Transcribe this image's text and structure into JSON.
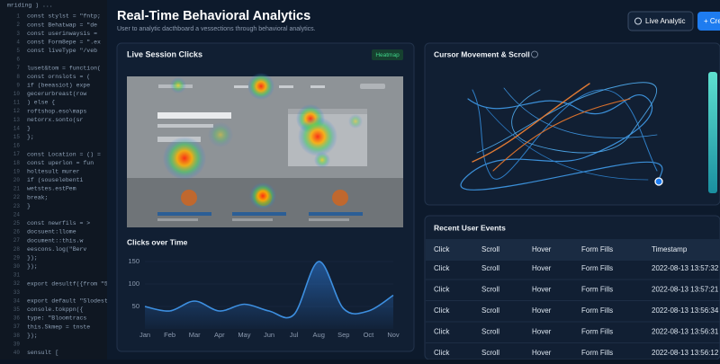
{
  "editor": {
    "tab": "mriding ) ...",
    "line_numbers": [
      "1",
      "2",
      "3",
      "4",
      "5",
      "6",
      "7",
      "8",
      "9",
      "10",
      "11",
      "12",
      "13",
      "14",
      "15",
      "16",
      "17",
      "18",
      "19",
      "20",
      "21",
      "22",
      "23",
      "24",
      "25",
      "26",
      "27",
      "28",
      "29",
      "30",
      "31",
      "32",
      "33",
      "34",
      "35",
      "36",
      "37",
      "38",
      "39",
      "40"
    ],
    "lines": [
      "const stylst = \"fntp;",
      "const Behatwap = \"de",
      "const userinwaysis =",
      "const Form8epe = \".ex",
      "const liveType \"/veb",
      "",
      "luset&tom = function(",
      "  const ornslots = (",
      "  if (beeasiot) expe",
      "    gecerurbreast(row",
      "  ) else {",
      "    roftshop.eso\\maps",
      "    netorrx.sonto(sr",
      "  }",
      "};",
      "",
      "const Location = () =",
      "  const uperlon = fun",
      "    holtesult murer",
      "    if (souselebenti",
      "      wetstes.estPem",
      "    break;",
      "  }",
      "",
      "  const newrfils = >",
      "    docsuent:llome",
      "    document::this.w",
      "    eescons.log(\"Berv",
      "  });",
      "});",
      "",
      "export desultf({from \"5",
      "",
      "export default \"Slodest",
      "  console.tokppn({",
      "    type: \"Bloomtracs",
      "    this.Skmep = tnste",
      "  });",
      "",
      "sensult ["
    ]
  },
  "header": {
    "title": "Real-Time Behavioral Analytics",
    "subtitle": "User to analytic dacthboard a vessections through behavioral analytics.",
    "live_button": "Live Analytic",
    "primary_button": "+ Create"
  },
  "heatmap_panel": {
    "title": "Live Session Clicks",
    "badge": "Heatmap"
  },
  "chart_data": {
    "type": "line",
    "title": "Clicks over Time",
    "categories": [
      "Jan",
      "Feb",
      "Mar",
      "Apr",
      "May",
      "Jun",
      "Jul",
      "Aug",
      "Sep",
      "Oct",
      "Nov"
    ],
    "values": [
      50,
      40,
      62,
      40,
      55,
      40,
      32,
      150,
      45,
      40,
      75
    ],
    "color": "#3d8fe0",
    "ylim": [
      0,
      150
    ],
    "yticks": [
      50,
      100,
      150
    ]
  },
  "cursor_panel": {
    "title": "Cursor Movement & Scroll"
  },
  "events": {
    "title": "Recent User Events",
    "columns": [
      "Click",
      "Scroll",
      "Hover",
      "Form Fills",
      "Timestamp"
    ],
    "rows": [
      [
        "Click",
        "Scroll",
        "Hover",
        "Form Fills",
        "2022-08-13 13:57:32"
      ],
      [
        "Click",
        "Scroll",
        "Hover",
        "Form Fills",
        "2022-08-13 13:57:21"
      ],
      [
        "Click",
        "Scroll",
        "Hover",
        "Form Fills",
        "2022-08-13 13:56:34"
      ],
      [
        "Click",
        "Scroll",
        "Hover",
        "Form Fills",
        "2022-08-13 13:56:31"
      ],
      [
        "Click",
        "Scroll",
        "Hover",
        "Form Fills",
        "2022-08-13 13:56:12"
      ]
    ]
  }
}
